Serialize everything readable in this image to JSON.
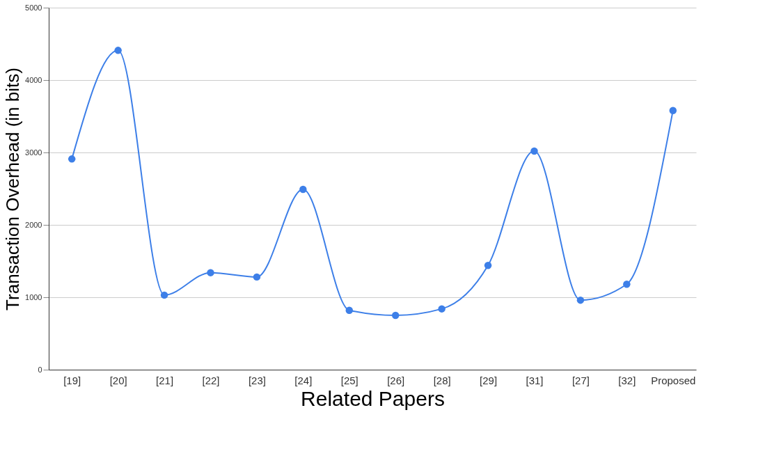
{
  "chart_data": {
    "type": "line",
    "xlabel": "Related Papers",
    "ylabel": "Transaction Overhead (in bits)",
    "categories": [
      "[19]",
      "[20]",
      "[21]",
      "[22]",
      "[23]",
      "[24]",
      "[25]",
      "[26]",
      "[28]",
      "[29]",
      "[31]",
      "[27]",
      "[32]",
      "Proposed"
    ],
    "series": [
      {
        "color": "#3d7fe8",
        "values": [
          2910,
          4410,
          1030,
          1340,
          1280,
          2490,
          820,
          750,
          840,
          1440,
          3020,
          960,
          1180,
          3580
        ]
      }
    ],
    "ylim": [
      0,
      5000
    ],
    "yticks": [
      0,
      1000,
      2000,
      3000,
      4000,
      5000
    ],
    "grid": "y",
    "marker": "circle",
    "line_style": "solid"
  }
}
